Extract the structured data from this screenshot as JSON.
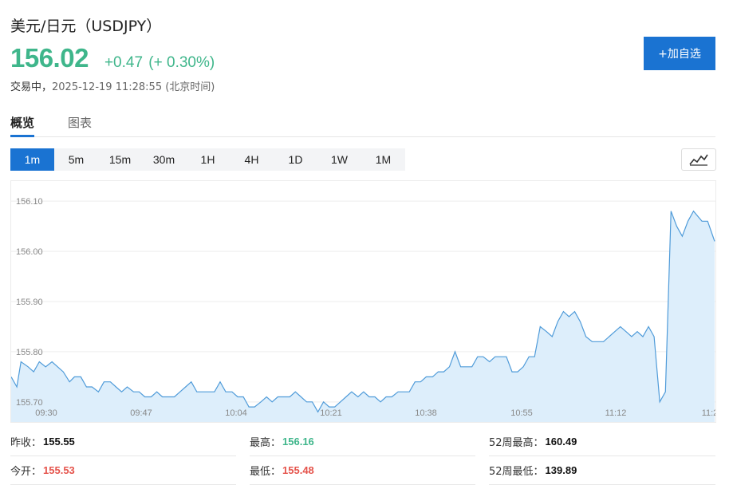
{
  "header": {
    "title": "美元/日元（USDJPY）",
    "price": "156.02",
    "change": "+0.47",
    "change_pct": "(+ 0.30%)",
    "status_label": "交易中，",
    "status_time": "2025-12-19 11:28:55 (北京时间)",
    "add_button": "+加自选"
  },
  "tabs": [
    {
      "label": "概览",
      "active": true
    },
    {
      "label": "图表",
      "active": false
    }
  ],
  "intervals": [
    "1m",
    "5m",
    "15m",
    "30m",
    "1H",
    "4H",
    "1D",
    "1W",
    "1M"
  ],
  "active_interval": "1m",
  "chart_type_icon": "line-chart-icon",
  "colors": {
    "up": "#3fb68b",
    "down": "#e5534b",
    "accent": "#1a73d2",
    "line": "#4f9bd9",
    "fill": "#ddeefb"
  },
  "chart_data": {
    "type": "area",
    "title": "",
    "xlabel": "",
    "ylabel": "",
    "x_ticks": [
      "09:30",
      "09:47",
      "10:04",
      "10:21",
      "10:38",
      "10:55",
      "11:12",
      "11:2"
    ],
    "y_ticks": [
      "156.10",
      "156.00",
      "155.90",
      "155.80",
      "155.70"
    ],
    "ylim": [
      155.66,
      156.14
    ],
    "grid": true,
    "legend": "none",
    "values": [
      155.75,
      155.73,
      155.78,
      155.77,
      155.76,
      155.78,
      155.77,
      155.78,
      155.77,
      155.76,
      155.74,
      155.75,
      155.75,
      155.73,
      155.73,
      155.72,
      155.74,
      155.74,
      155.73,
      155.72,
      155.73,
      155.72,
      155.72,
      155.71,
      155.71,
      155.72,
      155.71,
      155.71,
      155.71,
      155.72,
      155.73,
      155.74,
      155.72,
      155.72,
      155.72,
      155.72,
      155.74,
      155.72,
      155.72,
      155.71,
      155.71,
      155.69,
      155.69,
      155.7,
      155.71,
      155.7,
      155.71,
      155.71,
      155.71,
      155.72,
      155.71,
      155.7,
      155.7,
      155.68,
      155.7,
      155.69,
      155.69,
      155.7,
      155.71,
      155.72,
      155.71,
      155.72,
      155.71,
      155.71,
      155.7,
      155.71,
      155.71,
      155.72,
      155.72,
      155.72,
      155.74,
      155.74,
      155.75,
      155.75,
      155.76,
      155.76,
      155.77,
      155.8,
      155.77,
      155.77,
      155.77,
      155.79,
      155.79,
      155.78,
      155.79,
      155.79,
      155.79,
      155.76,
      155.76,
      155.77,
      155.79,
      155.79,
      155.85,
      155.84,
      155.83,
      155.86,
      155.88,
      155.87,
      155.88,
      155.86,
      155.83,
      155.82,
      155.82,
      155.82,
      155.83,
      155.84,
      155.85,
      155.84,
      155.83,
      155.84,
      155.83,
      155.85,
      155.83,
      155.7,
      155.72,
      156.08,
      156.05,
      156.03,
      156.06,
      156.08,
      156.07,
      156.06,
      156.06,
      156.02
    ],
    "positions": [
      0.0,
      0.008,
      0.014,
      0.024,
      0.032,
      0.04,
      0.049,
      0.058,
      0.066,
      0.074,
      0.083,
      0.09,
      0.099,
      0.107,
      0.115,
      0.124,
      0.132,
      0.141,
      0.149,
      0.157,
      0.165,
      0.174,
      0.182,
      0.19,
      0.199,
      0.207,
      0.215,
      0.224,
      0.232,
      0.24,
      0.248,
      0.256,
      0.264,
      0.273,
      0.281,
      0.289,
      0.297,
      0.305,
      0.314,
      0.322,
      0.33,
      0.338,
      0.346,
      0.355,
      0.363,
      0.371,
      0.379,
      0.387,
      0.396,
      0.404,
      0.412,
      0.42,
      0.428,
      0.436,
      0.444,
      0.452,
      0.46,
      0.468,
      0.476,
      0.484,
      0.493,
      0.501,
      0.509,
      0.517,
      0.525,
      0.533,
      0.541,
      0.55,
      0.558,
      0.566,
      0.574,
      0.582,
      0.59,
      0.599,
      0.607,
      0.615,
      0.623,
      0.631,
      0.639,
      0.647,
      0.655,
      0.663,
      0.671,
      0.68,
      0.688,
      0.696,
      0.704,
      0.712,
      0.72,
      0.728,
      0.736,
      0.744,
      0.752,
      0.761,
      0.769,
      0.777,
      0.785,
      0.793,
      0.801,
      0.809,
      0.817,
      0.826,
      0.834,
      0.842,
      0.85,
      0.858,
      0.866,
      0.874,
      0.882,
      0.89,
      0.898,
      0.906,
      0.914,
      0.922,
      0.93,
      0.938,
      0.946,
      0.954,
      0.962,
      0.97,
      0.976,
      0.982,
      0.99,
      1.0
    ]
  },
  "stats": [
    {
      "label": "昨收：",
      "value": "155.55",
      "color": "dark"
    },
    {
      "label": "最高：",
      "value": "156.16",
      "color": "green"
    },
    {
      "label": "52周最高：",
      "value": "160.49",
      "color": "dark"
    },
    {
      "label": "今开：",
      "value": "155.53",
      "color": "red"
    },
    {
      "label": "最低：",
      "value": "155.48",
      "color": "red"
    },
    {
      "label": "52周最低：",
      "value": "139.89",
      "color": "dark"
    }
  ]
}
